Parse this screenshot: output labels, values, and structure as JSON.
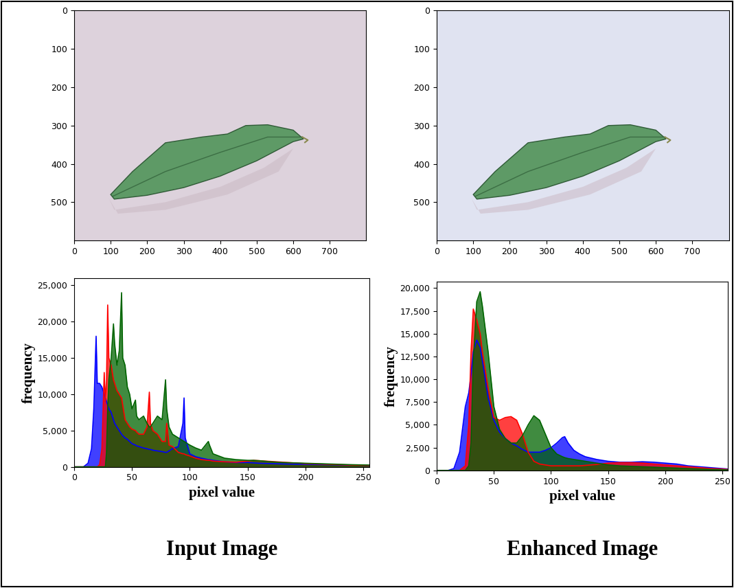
{
  "chart_data": [
    {
      "type": "image",
      "color": "#ddd2dc",
      "xlim": [
        0,
        800
      ],
      "ylim": [
        600,
        0
      ],
      "xticks": [
        0,
        100,
        200,
        300,
        400,
        500,
        600,
        700
      ],
      "yticks": [
        0,
        100,
        200,
        300,
        400,
        500
      ]
    },
    {
      "type": "image",
      "color": "#e0e3f1",
      "xlim": [
        0,
        800
      ],
      "ylim": [
        600,
        0
      ],
      "xticks": [
        0,
        100,
        200,
        300,
        400,
        500,
        600,
        700
      ],
      "yticks": [
        0,
        100,
        200,
        300,
        400,
        500
      ]
    },
    {
      "type": "area",
      "x_label": "pixel value",
      "y_label": "frequency",
      "xlim": [
        0,
        255
      ],
      "ylim": [
        0,
        26000
      ],
      "xticks": [
        0,
        50,
        100,
        150,
        200,
        250
      ],
      "yticks": [
        0,
        {
          "value": 5000,
          "label": "5,000"
        },
        {
          "value": 10000,
          "label": "10,000"
        },
        {
          "value": 15000,
          "label": "15,000"
        },
        {
          "value": 20000,
          "label": "20,000"
        },
        {
          "value": 25000,
          "label": "25,000"
        }
      ],
      "x": [
        0,
        8,
        12,
        15,
        17,
        19,
        20,
        22,
        24,
        26,
        27,
        28,
        29,
        30,
        32,
        34,
        35,
        37,
        39,
        41,
        42,
        44,
        46,
        48,
        50,
        53,
        54,
        56,
        60,
        63,
        65,
        66,
        68,
        72,
        76,
        79,
        80,
        82,
        85,
        90,
        94,
        95,
        96,
        100,
        105,
        110,
        116,
        117,
        120,
        130,
        140,
        150,
        155,
        160,
        170,
        180,
        200,
        220,
        240,
        255
      ],
      "series": [
        {
          "color": "#0000ff",
          "values": [
            0,
            0,
            500,
            2500,
            8000,
            18000,
            11500,
            11500,
            11000,
            10000,
            9500,
            9000,
            8500,
            8000,
            7500,
            6500,
            6000,
            5500,
            5000,
            4500,
            4300,
            4000,
            3800,
            3500,
            3200,
            3000,
            2900,
            2800,
            2600,
            2500,
            2400,
            2400,
            2300,
            2200,
            2100,
            2000,
            2000,
            2200,
            2500,
            2800,
            6000,
            9500,
            4000,
            1800,
            1400,
            1200,
            1000,
            1000,
            900,
            700,
            600,
            600,
            550,
            500,
            450,
            400,
            350,
            300,
            250,
            200
          ]
        },
        {
          "color": "#ff0000",
          "values": [
            0,
            0,
            0,
            0,
            0,
            0,
            0,
            300,
            2500,
            13000,
            9000,
            12000,
            22300,
            15000,
            14000,
            12000,
            11500,
            10500,
            10000,
            9500,
            8500,
            6500,
            6000,
            5500,
            5200,
            5000,
            4800,
            4500,
            4500,
            5500,
            10300,
            6000,
            5000,
            4500,
            3500,
            3500,
            6000,
            3000,
            2800,
            2000,
            1800,
            1800,
            1700,
            1500,
            1200,
            1000,
            900,
            900,
            800,
            700,
            650,
            800,
            900,
            850,
            750,
            650,
            450,
            350,
            250,
            200
          ]
        },
        {
          "color": "#006400",
          "values": [
            0,
            0,
            0,
            0,
            0,
            0,
            0,
            0,
            0,
            0,
            0,
            2000,
            8000,
            12000,
            15000,
            19700,
            17000,
            14000,
            16000,
            24000,
            15000,
            14000,
            11000,
            10000,
            8000,
            9200,
            7000,
            6500,
            7000,
            6000,
            5500,
            5500,
            6000,
            7000,
            6500,
            12000,
            8000,
            5500,
            4500,
            4000,
            3600,
            3500,
            3400,
            3000,
            2600,
            2300,
            3500,
            3000,
            1800,
            1200,
            1000,
            900,
            900,
            850,
            700,
            600,
            500,
            400,
            300,
            250
          ]
        }
      ]
    },
    {
      "type": "area",
      "x_label": "pixel value",
      "y_label": "frequency",
      "xlim": [
        0,
        255
      ],
      "ylim": [
        0,
        20700
      ],
      "xticks": [
        0,
        50,
        100,
        150,
        200,
        250
      ],
      "yticks": [
        0,
        {
          "value": 2500,
          "label": "2,500"
        },
        {
          "value": 5000,
          "label": "5,000"
        },
        {
          "value": 7500,
          "label": "7,500"
        },
        {
          "value": 10000,
          "label": "10,000"
        },
        {
          "value": 12500,
          "label": "12,500"
        },
        {
          "value": 15000,
          "label": "15,000"
        },
        {
          "value": 17500,
          "label": "17,500"
        },
        {
          "value": 20000,
          "label": "20,000"
        }
      ],
      "x": [
        0,
        10,
        15,
        20,
        25,
        28,
        30,
        32,
        35,
        38,
        40,
        45,
        50,
        55,
        60,
        65,
        70,
        75,
        80,
        85,
        90,
        95,
        100,
        105,
        110,
        112,
        115,
        120,
        125,
        130,
        140,
        150,
        160,
        170,
        180,
        190,
        200,
        210,
        220,
        230,
        240,
        250,
        255
      ],
      "series": [
        {
          "color": "#0000ff",
          "values": [
            0,
            0,
            200,
            2000,
            7000,
            8500,
            10500,
            13000,
            14300,
            13500,
            12000,
            8000,
            5500,
            4200,
            3500,
            3000,
            2700,
            2300,
            2000,
            2000,
            2000,
            2200,
            2500,
            3000,
            3600,
            3700,
            3000,
            2200,
            1800,
            1500,
            1200,
            1000,
            900,
            900,
            950,
            900,
            800,
            700,
            500,
            400,
            300,
            200,
            150
          ]
        },
        {
          "color": "#ff0000",
          "values": [
            0,
            0,
            0,
            0,
            500,
            5000,
            13000,
            17700,
            16500,
            15000,
            13000,
            9000,
            5800,
            5500,
            5800,
            5900,
            5500,
            4000,
            2000,
            1000,
            700,
            600,
            500,
            500,
            500,
            500,
            500,
            500,
            500,
            550,
            650,
            800,
            850,
            850,
            800,
            700,
            600,
            500,
            400,
            300,
            200,
            150,
            100
          ]
        },
        {
          "color": "#006400",
          "values": [
            0,
            0,
            0,
            0,
            0,
            500,
            3000,
            12000,
            18500,
            19600,
            18000,
            13000,
            7000,
            4500,
            3500,
            3000,
            3000,
            3800,
            5000,
            6000,
            5500,
            4000,
            2500,
            1800,
            1500,
            1400,
            1300,
            1200,
            1100,
            1000,
            800,
            600,
            500,
            450,
            400,
            350,
            300,
            250,
            200,
            150,
            100,
            80,
            50
          ]
        }
      ]
    }
  ],
  "captions": [
    "Input Image",
    "Enhanced Image"
  ]
}
